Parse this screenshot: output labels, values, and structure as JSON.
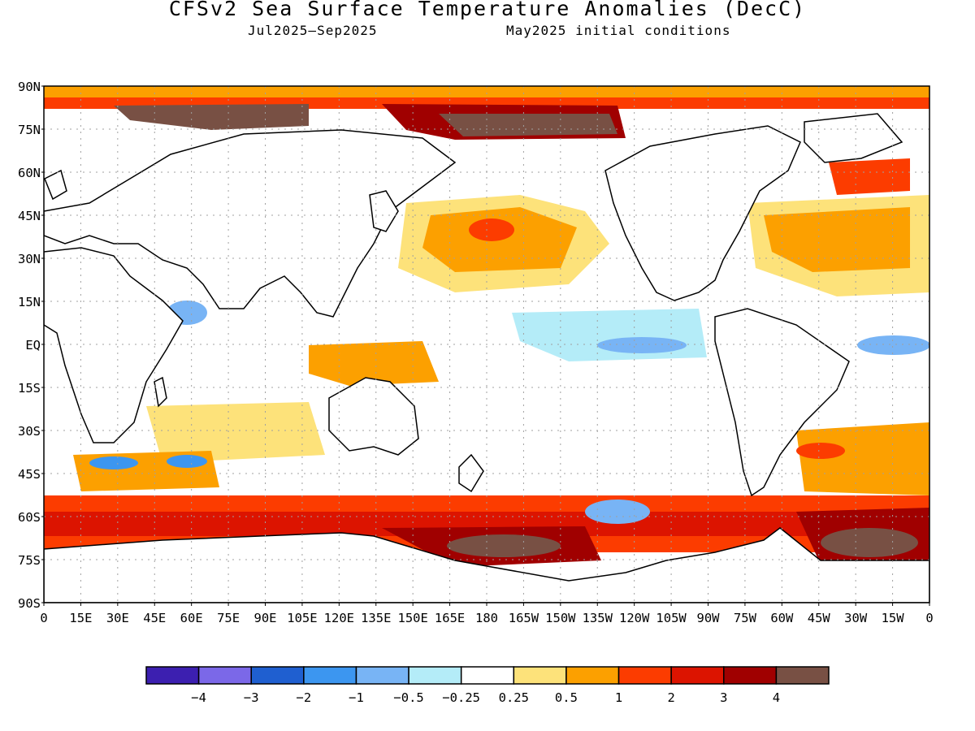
{
  "title": "CFSv2 Sea Surface Temperature Anomalies (DecC)",
  "subtitle_left": "Jul2025–Sep2025",
  "subtitle_right": "May2025 initial conditions",
  "lat_labels": [
    "90N",
    "75N",
    "60N",
    "45N",
    "30N",
    "15N",
    "EQ",
    "15S",
    "30S",
    "45S",
    "60S",
    "75S",
    "90S"
  ],
  "lon_labels": [
    "0",
    "15E",
    "30E",
    "45E",
    "60E",
    "75E",
    "90E",
    "105E",
    "120E",
    "135E",
    "150E",
    "165E",
    "180",
    "165W",
    "150W",
    "135W",
    "120W",
    "105W",
    "90W",
    "75W",
    "60W",
    "45W",
    "30W",
    "15W",
    "0"
  ],
  "legend": {
    "colors": [
      "#3c1fb0",
      "#7b68e8",
      "#1f5fd0",
      "#3c96f0",
      "#78b4f5",
      "#b4ecf8",
      "#ffffff",
      "#fde27a",
      "#fca000",
      "#fc3c00",
      "#dc1400",
      "#a00000",
      "#785044"
    ],
    "labels": [
      "−4",
      "−3",
      "−2",
      "−1",
      "−0.5",
      "−0.25",
      "0.25",
      "0.5",
      "1",
      "2",
      "3",
      "4"
    ]
  },
  "colors": {
    "land": "#ffffff",
    "coast": "#000000",
    "grid": "#a0a0a0"
  }
}
